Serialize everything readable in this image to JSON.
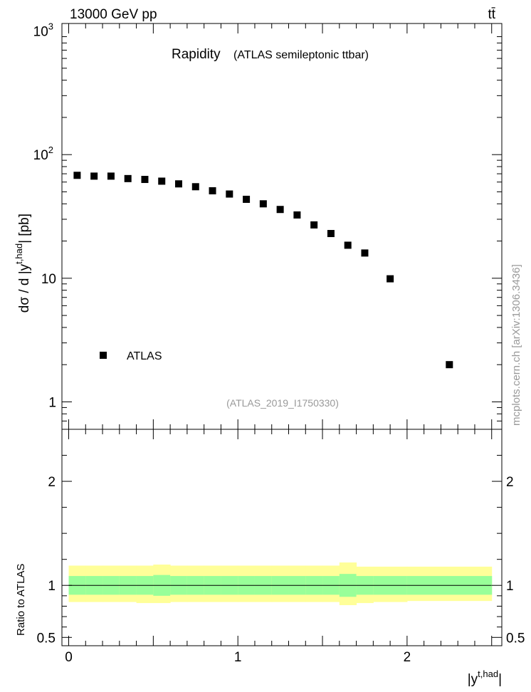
{
  "chart_data": [
    {
      "type": "scatter",
      "header_left": "13000 GeV pp",
      "header_right": "tt̄",
      "title": "Rapidity",
      "subtitle": "(ATLAS semileptonic ttbar)",
      "ylabel": "dσ / d |y",
      "ylabel_sup": "t,had",
      "ylabel_end": "| [pb]",
      "yscale": "log",
      "ylim": [
        0.6,
        1150
      ],
      "xlim": [
        -0.04,
        2.56
      ],
      "y_tick_labels": [
        "1",
        "10",
        "10",
        "10"
      ],
      "y_tick_sup": [
        "",
        "",
        "2",
        "3"
      ],
      "series": [
        {
          "name": "ATLAS",
          "x": [
            0.05,
            0.15,
            0.25,
            0.35,
            0.45,
            0.55,
            0.65,
            0.75,
            0.85,
            0.95,
            1.05,
            1.15,
            1.25,
            1.35,
            1.45,
            1.55,
            1.65,
            1.75,
            1.9,
            2.25
          ],
          "y": [
            68,
            67,
            67,
            64,
            63,
            61,
            58,
            55,
            51,
            48,
            43.5,
            40,
            36,
            32.5,
            27,
            23,
            18.5,
            16,
            9.9,
            2.0
          ],
          "marker": "square",
          "color": "#000000"
        }
      ],
      "legend": {
        "label": "ATLAS",
        "placement": "lower-left"
      },
      "analysis_id": "(ATLAS_2019_I1750330)",
      "side_label": "mcplots.cern.ch [arXiv:1306.3436]"
    },
    {
      "type": "area",
      "ylabel": "Ratio to ATLAS",
      "xlabel": "|y",
      "xlabel_sup": "t,had",
      "xlabel_end": "|",
      "ylim": [
        0.42,
        2.5
      ],
      "xlim": [
        -0.04,
        2.56
      ],
      "x_tick_labels": [
        "0",
        "1",
        "2"
      ],
      "y_tick_labels": [
        "0.5",
        "1",
        "2"
      ],
      "reference_line": 1.0,
      "bands": {
        "edges": [
          0.0,
          0.1,
          0.2,
          0.3,
          0.4,
          0.5,
          0.6,
          0.7,
          0.8,
          0.9,
          1.0,
          1.1,
          1.2,
          1.3,
          1.4,
          1.5,
          1.6,
          1.7,
          1.8,
          2.0,
          2.5
        ],
        "inner_low": [
          0.91,
          0.91,
          0.91,
          0.91,
          0.91,
          0.9,
          0.91,
          0.91,
          0.91,
          0.91,
          0.91,
          0.91,
          0.91,
          0.91,
          0.91,
          0.91,
          0.89,
          0.91,
          0.91,
          0.91
        ],
        "inner_high": [
          1.09,
          1.09,
          1.09,
          1.09,
          1.09,
          1.1,
          1.09,
          1.09,
          1.09,
          1.09,
          1.09,
          1.09,
          1.09,
          1.09,
          1.09,
          1.09,
          1.11,
          1.09,
          1.09,
          1.09
        ],
        "outer_low": [
          0.84,
          0.84,
          0.84,
          0.84,
          0.83,
          0.83,
          0.84,
          0.84,
          0.84,
          0.84,
          0.84,
          0.84,
          0.84,
          0.84,
          0.84,
          0.84,
          0.81,
          0.83,
          0.84,
          0.85
        ],
        "outer_high": [
          1.19,
          1.19,
          1.19,
          1.19,
          1.19,
          1.2,
          1.19,
          1.19,
          1.19,
          1.19,
          1.19,
          1.19,
          1.19,
          1.19,
          1.19,
          1.19,
          1.22,
          1.18,
          1.18,
          1.18
        ],
        "inner_color": "#99ff99",
        "outer_color": "#ffff99"
      }
    }
  ]
}
